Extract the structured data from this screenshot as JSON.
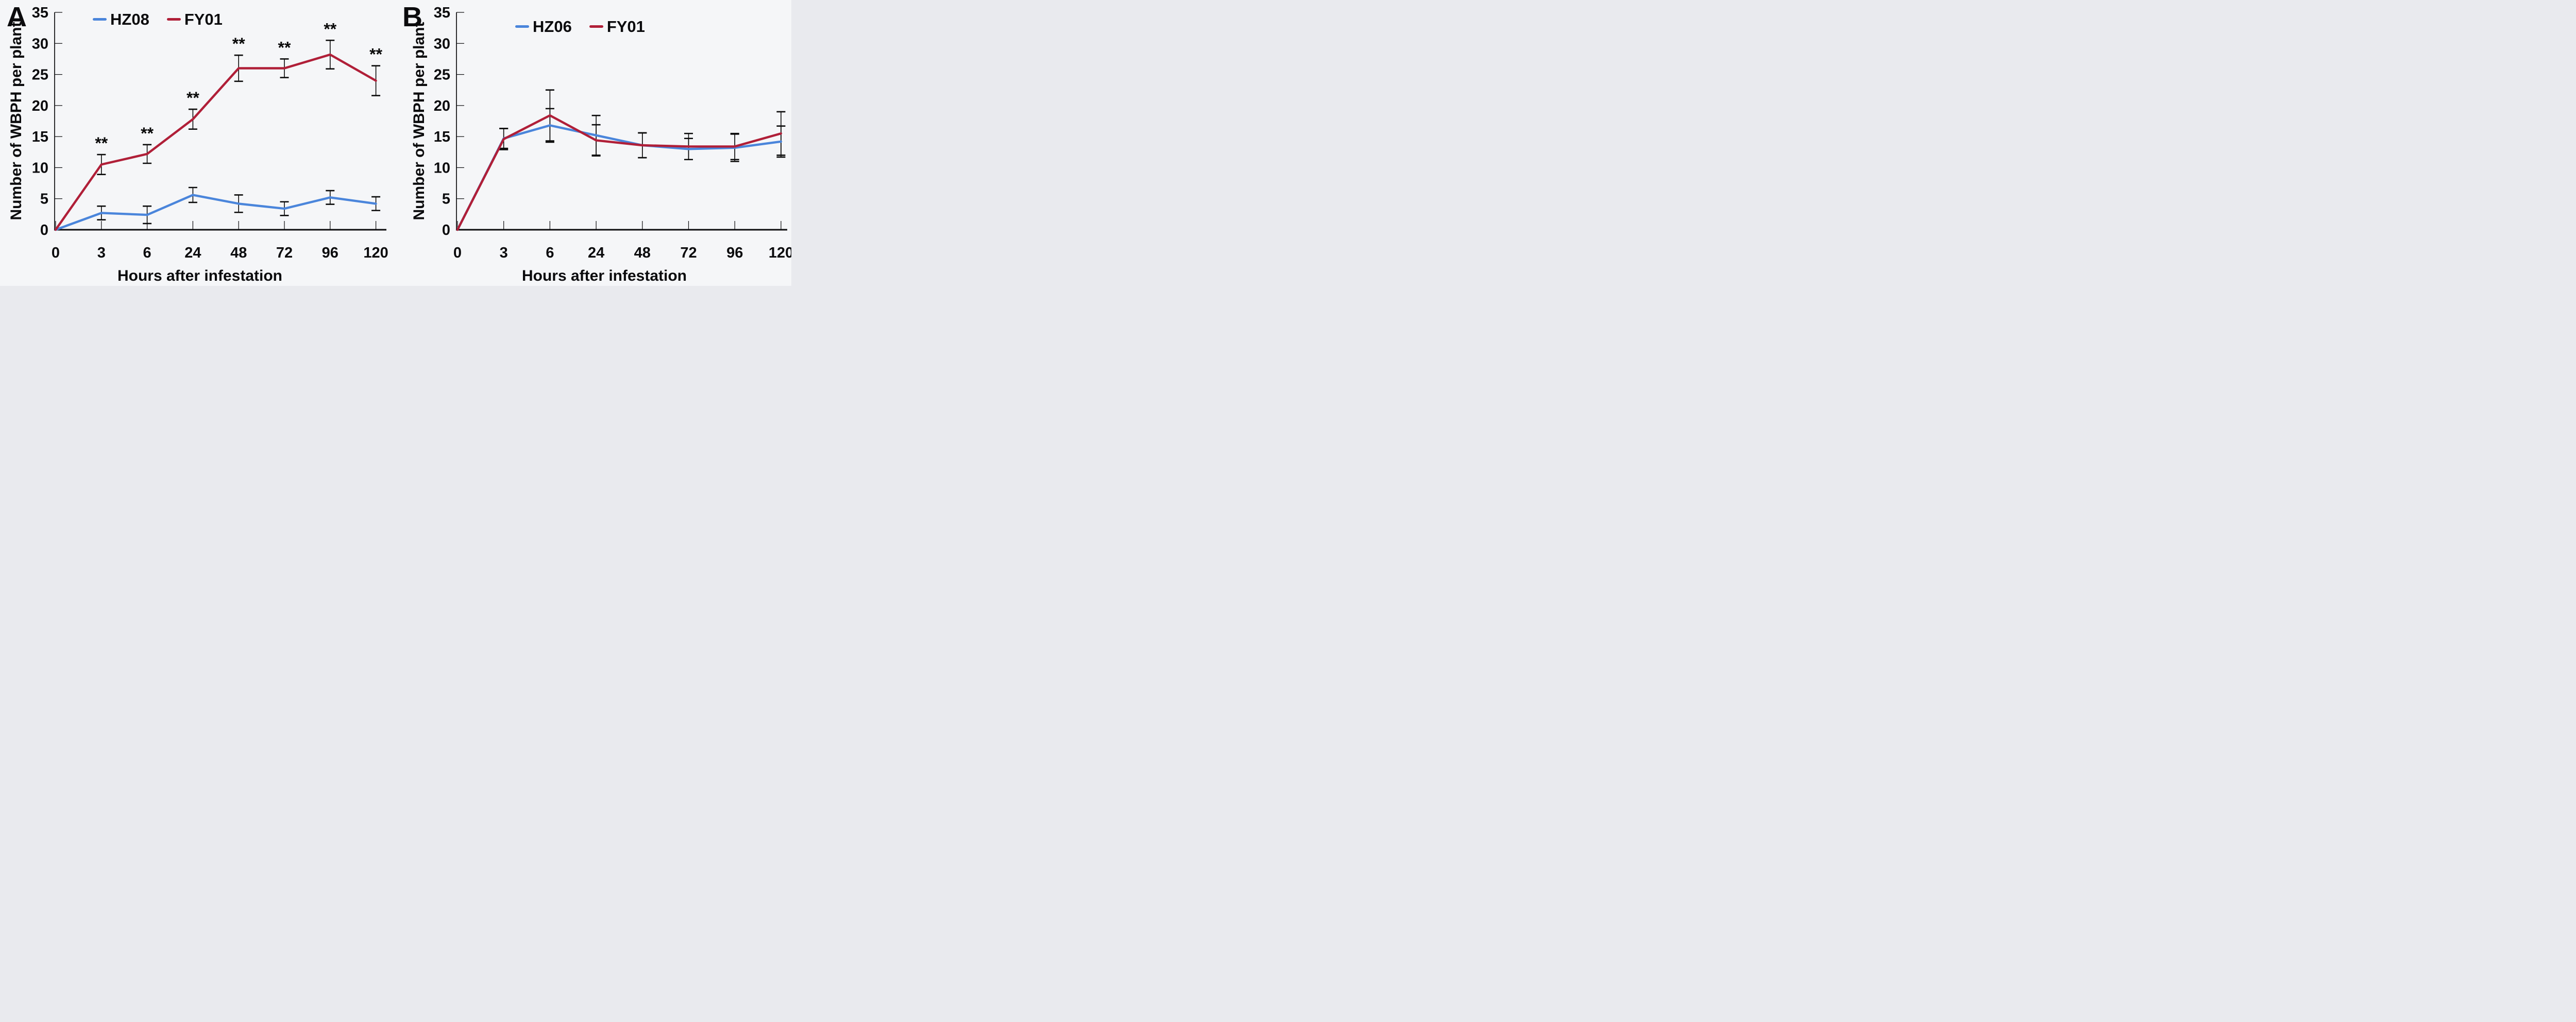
{
  "figure_bg": "#f5f6f8",
  "text_color": "#0b0b0d",
  "axis_color": "#0b0b0d",
  "chart_data": [
    {
      "type": "line",
      "panel_label": "A",
      "xlabel": "Hours after infestation",
      "ylabel": "Number of WBPH per plant",
      "categories": [
        "0",
        "3",
        "6",
        "24",
        "48",
        "72",
        "96",
        "120"
      ],
      "ylim": [
        0,
        35
      ],
      "ytick_step": 5,
      "grid": false,
      "legend_position": "top-inside",
      "error_bars": true,
      "series": [
        {
          "name": "HZ08",
          "color": "#4a85db",
          "values": [
            0,
            2.7,
            2.4,
            5.6,
            4.2,
            3.4,
            5.2,
            4.2
          ],
          "errors": [
            0,
            1.1,
            1.4,
            1.2,
            1.4,
            1.1,
            1.1,
            1.1
          ],
          "significance": [
            "",
            "",
            "",
            "",
            "",
            "",
            "",
            ""
          ]
        },
        {
          "name": "FY01",
          "color": "#b01f38",
          "values": [
            0,
            10.5,
            12.2,
            17.8,
            26.0,
            26.0,
            28.2,
            24.0
          ],
          "errors": [
            0,
            1.6,
            1.5,
            1.6,
            2.1,
            1.5,
            2.3,
            2.4
          ],
          "significance": [
            "",
            "**",
            "**",
            "**",
            "**",
            "**",
            "**",
            "**"
          ]
        }
      ]
    },
    {
      "type": "line",
      "panel_label": "B",
      "xlabel": "Hours after infestation",
      "ylabel": "Number of WBPH per plant",
      "categories": [
        "0",
        "3",
        "6",
        "24",
        "48",
        "72",
        "96",
        "120"
      ],
      "ylim": [
        0,
        35
      ],
      "ytick_step": 5,
      "grid": false,
      "legend_position": "top-inside",
      "error_bars": true,
      "series": [
        {
          "name": "HZ06",
          "color": "#4a85db",
          "values": [
            0,
            14.7,
            16.8,
            15.2,
            13.6,
            13.0,
            13.2,
            14.2
          ],
          "errors": [
            0,
            1.6,
            2.7,
            3.2,
            2.0,
            1.7,
            2.2,
            2.5
          ],
          "significance": [
            "",
            "",
            "",
            "",
            "",
            "",
            "",
            ""
          ]
        },
        {
          "name": "FY01",
          "color": "#b01f38",
          "values": [
            0,
            14.6,
            18.4,
            14.4,
            13.6,
            13.4,
            13.4,
            15.5
          ],
          "errors": [
            0,
            1.7,
            4.1,
            2.5,
            2.0,
            2.1,
            2.1,
            3.5
          ],
          "significance": [
            "",
            "",
            "",
            "",
            "",
            "",
            "",
            ""
          ]
        }
      ]
    }
  ]
}
